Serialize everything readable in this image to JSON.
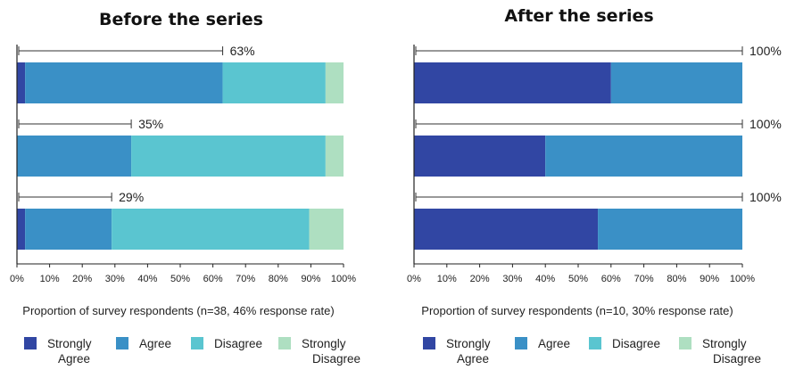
{
  "chart_data": [
    {
      "type": "bar",
      "orientation": "horizontal",
      "stacked": true,
      "title": "Before the series",
      "xlabel": "Proportion of survey respondents (n=38, 46% response rate)",
      "xlim": [
        0,
        100
      ],
      "x_ticks": [
        "0%",
        "10%",
        "20%",
        "30%",
        "40%",
        "50%",
        "60%",
        "70%",
        "80%",
        "90%",
        "100%"
      ],
      "categories": [
        "",
        "",
        ""
      ],
      "series": [
        {
          "name": "Strongly Agree",
          "color": "#3146a3",
          "values": [
            2.5,
            0,
            2.5
          ]
        },
        {
          "name": "Agree",
          "color": "#3a90c6",
          "values": [
            60.5,
            35,
            26.5
          ]
        },
        {
          "name": "Disagree",
          "color": "#5ac5d0",
          "values": [
            31.5,
            59.5,
            60.5
          ]
        },
        {
          "name": "Strongly Disagree",
          "color": "#aedfc1",
          "values": [
            5.5,
            5.5,
            10.5
          ]
        }
      ],
      "bracket_labels": [
        "63%",
        "35%",
        "29%"
      ],
      "bracket_values": [
        63,
        35,
        29
      ],
      "legend": {
        "placement": "bottom",
        "labels": [
          "Strongly\nAgree",
          "Agree",
          "Disagree",
          "Strongly\nDisagree"
        ]
      }
    },
    {
      "type": "bar",
      "orientation": "horizontal",
      "stacked": true,
      "title": "After the series",
      "xlabel": "Proportion of survey respondents (n=10, 30% response rate)",
      "xlim": [
        0,
        100
      ],
      "x_ticks": [
        "0%",
        "10%",
        "20%",
        "30%",
        "40%",
        "50%",
        "60%",
        "70%",
        "80%",
        "90%",
        "100%"
      ],
      "categories": [
        "",
        "",
        ""
      ],
      "series": [
        {
          "name": "Strongly Agree",
          "color": "#3146a3",
          "values": [
            60,
            40,
            56
          ]
        },
        {
          "name": "Agree",
          "color": "#3a90c6",
          "values": [
            40,
            60,
            44
          ]
        },
        {
          "name": "Disagree",
          "color": "#5ac5d0",
          "values": [
            0,
            0,
            0
          ]
        },
        {
          "name": "Strongly Disagree",
          "color": "#aedfc1",
          "values": [
            0,
            0,
            0
          ]
        }
      ],
      "bracket_labels": [
        "100%",
        "100%",
        "100%"
      ],
      "bracket_values": [
        100,
        100,
        100
      ],
      "legend": {
        "placement": "bottom",
        "labels": [
          "Strongly\nAgree",
          "Agree",
          "Disagree",
          "Strongly\nDisagree"
        ]
      }
    }
  ]
}
